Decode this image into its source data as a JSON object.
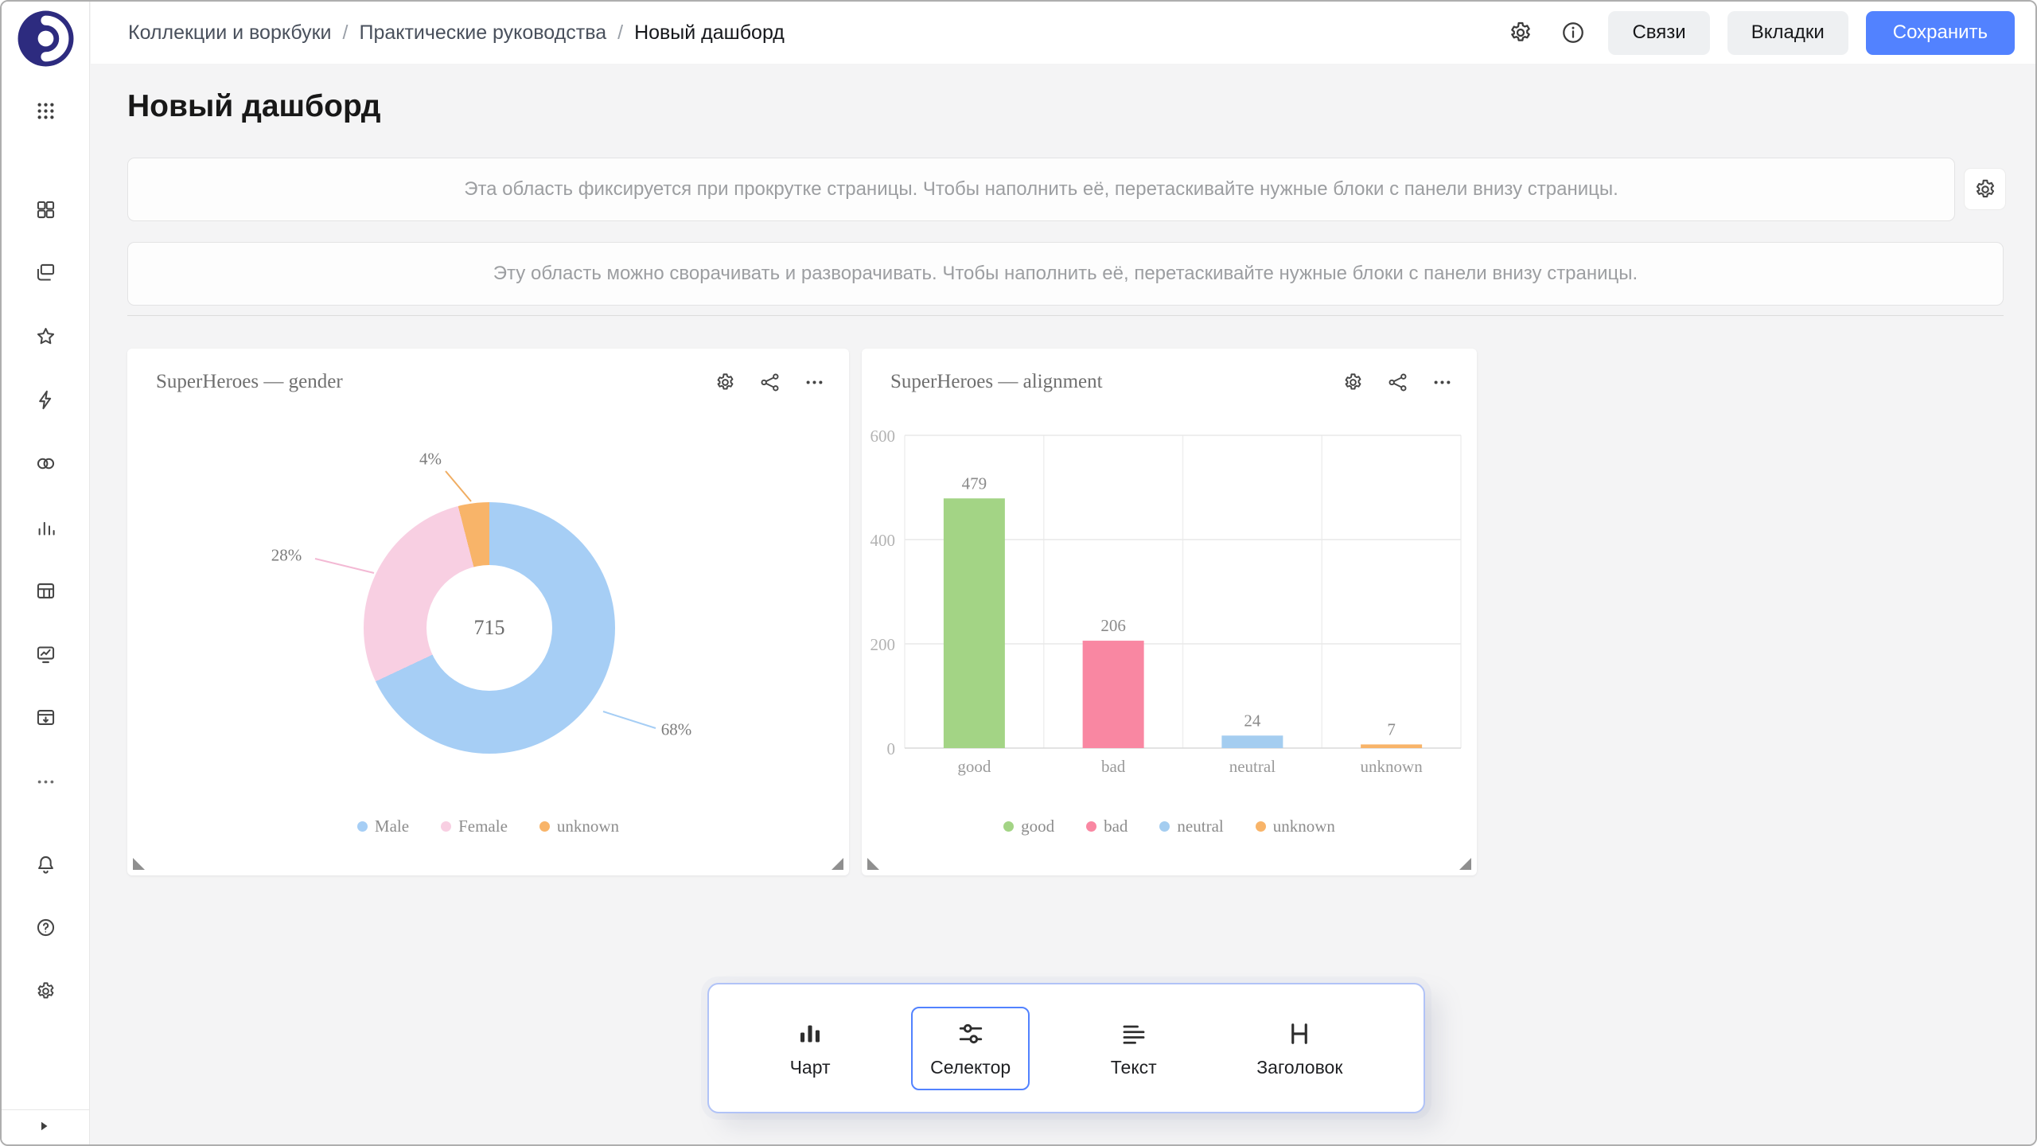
{
  "colors": {
    "accent": "#5282ff",
    "background": "#f4f4f5",
    "panel_border": "#b1c3f7"
  },
  "sidebar": {
    "icons": [
      "datalens-logo",
      "apps-grid",
      "dashboards",
      "collections",
      "favorites",
      "quick-actions",
      "linked-rings",
      "charts",
      "tables",
      "monitoring",
      "storage",
      "more",
      "notifications",
      "help",
      "settings",
      "expand"
    ]
  },
  "header": {
    "breadcrumb": [
      "Коллекции и воркбуки",
      "Практические руководства",
      "Новый дашборд"
    ],
    "icons": [
      "settings-icon",
      "info-icon"
    ],
    "actions": {
      "links": "Связи",
      "tabs": "Вкладки",
      "save": "Сохранить"
    }
  },
  "page": {
    "title": "Новый дашборд"
  },
  "placeholders": {
    "fixed": "Эта область фиксируется при прокрутке страницы. Чтобы наполнить её, перетаскивайте нужные блоки с панели внизу страницы.",
    "collapsible": "Эту область можно сворачивать и разворачивать. Чтобы наполнить её, перетаскивайте нужные блоки с панели внизу страницы."
  },
  "widget_toolbar": {
    "icons": [
      "settings-icon",
      "relations-icon",
      "more-icon"
    ]
  },
  "chart_data": [
    {
      "type": "pie",
      "title": "SuperHeroes — gender",
      "center_total": "715",
      "slices": [
        {
          "label": "Male",
          "pct": 68,
          "pct_text": "68%",
          "color": "#a6cef5"
        },
        {
          "label": "Female",
          "pct": 28,
          "pct_text": "28%",
          "color": "#f8cfe2"
        },
        {
          "label": "unknown",
          "pct": 4,
          "pct_text": "4%",
          "color": "#f8b469"
        }
      ],
      "legend_position": "bottom"
    },
    {
      "type": "bar",
      "title": "SuperHeroes — alignment",
      "categories": [
        "good",
        "bad",
        "neutral",
        "unknown"
      ],
      "values": [
        479,
        206,
        24,
        7
      ],
      "colors": [
        "#a3d485",
        "#f987a2",
        "#a4cdf0",
        "#f8b469"
      ],
      "ylim": [
        0,
        600
      ],
      "yticks": [
        0,
        200,
        400,
        600
      ],
      "grid": true,
      "legend_position": "bottom"
    }
  ],
  "bottom_panel": {
    "items": [
      {
        "id": "chart",
        "label": "Чарт",
        "icon": "chart-icon",
        "selected": false
      },
      {
        "id": "selector",
        "label": "Селектор",
        "icon": "selector-icon",
        "selected": true
      },
      {
        "id": "text",
        "label": "Текст",
        "icon": "text-icon",
        "selected": false
      },
      {
        "id": "heading",
        "label": "Заголовок",
        "icon": "heading-icon",
        "selected": false
      }
    ]
  }
}
